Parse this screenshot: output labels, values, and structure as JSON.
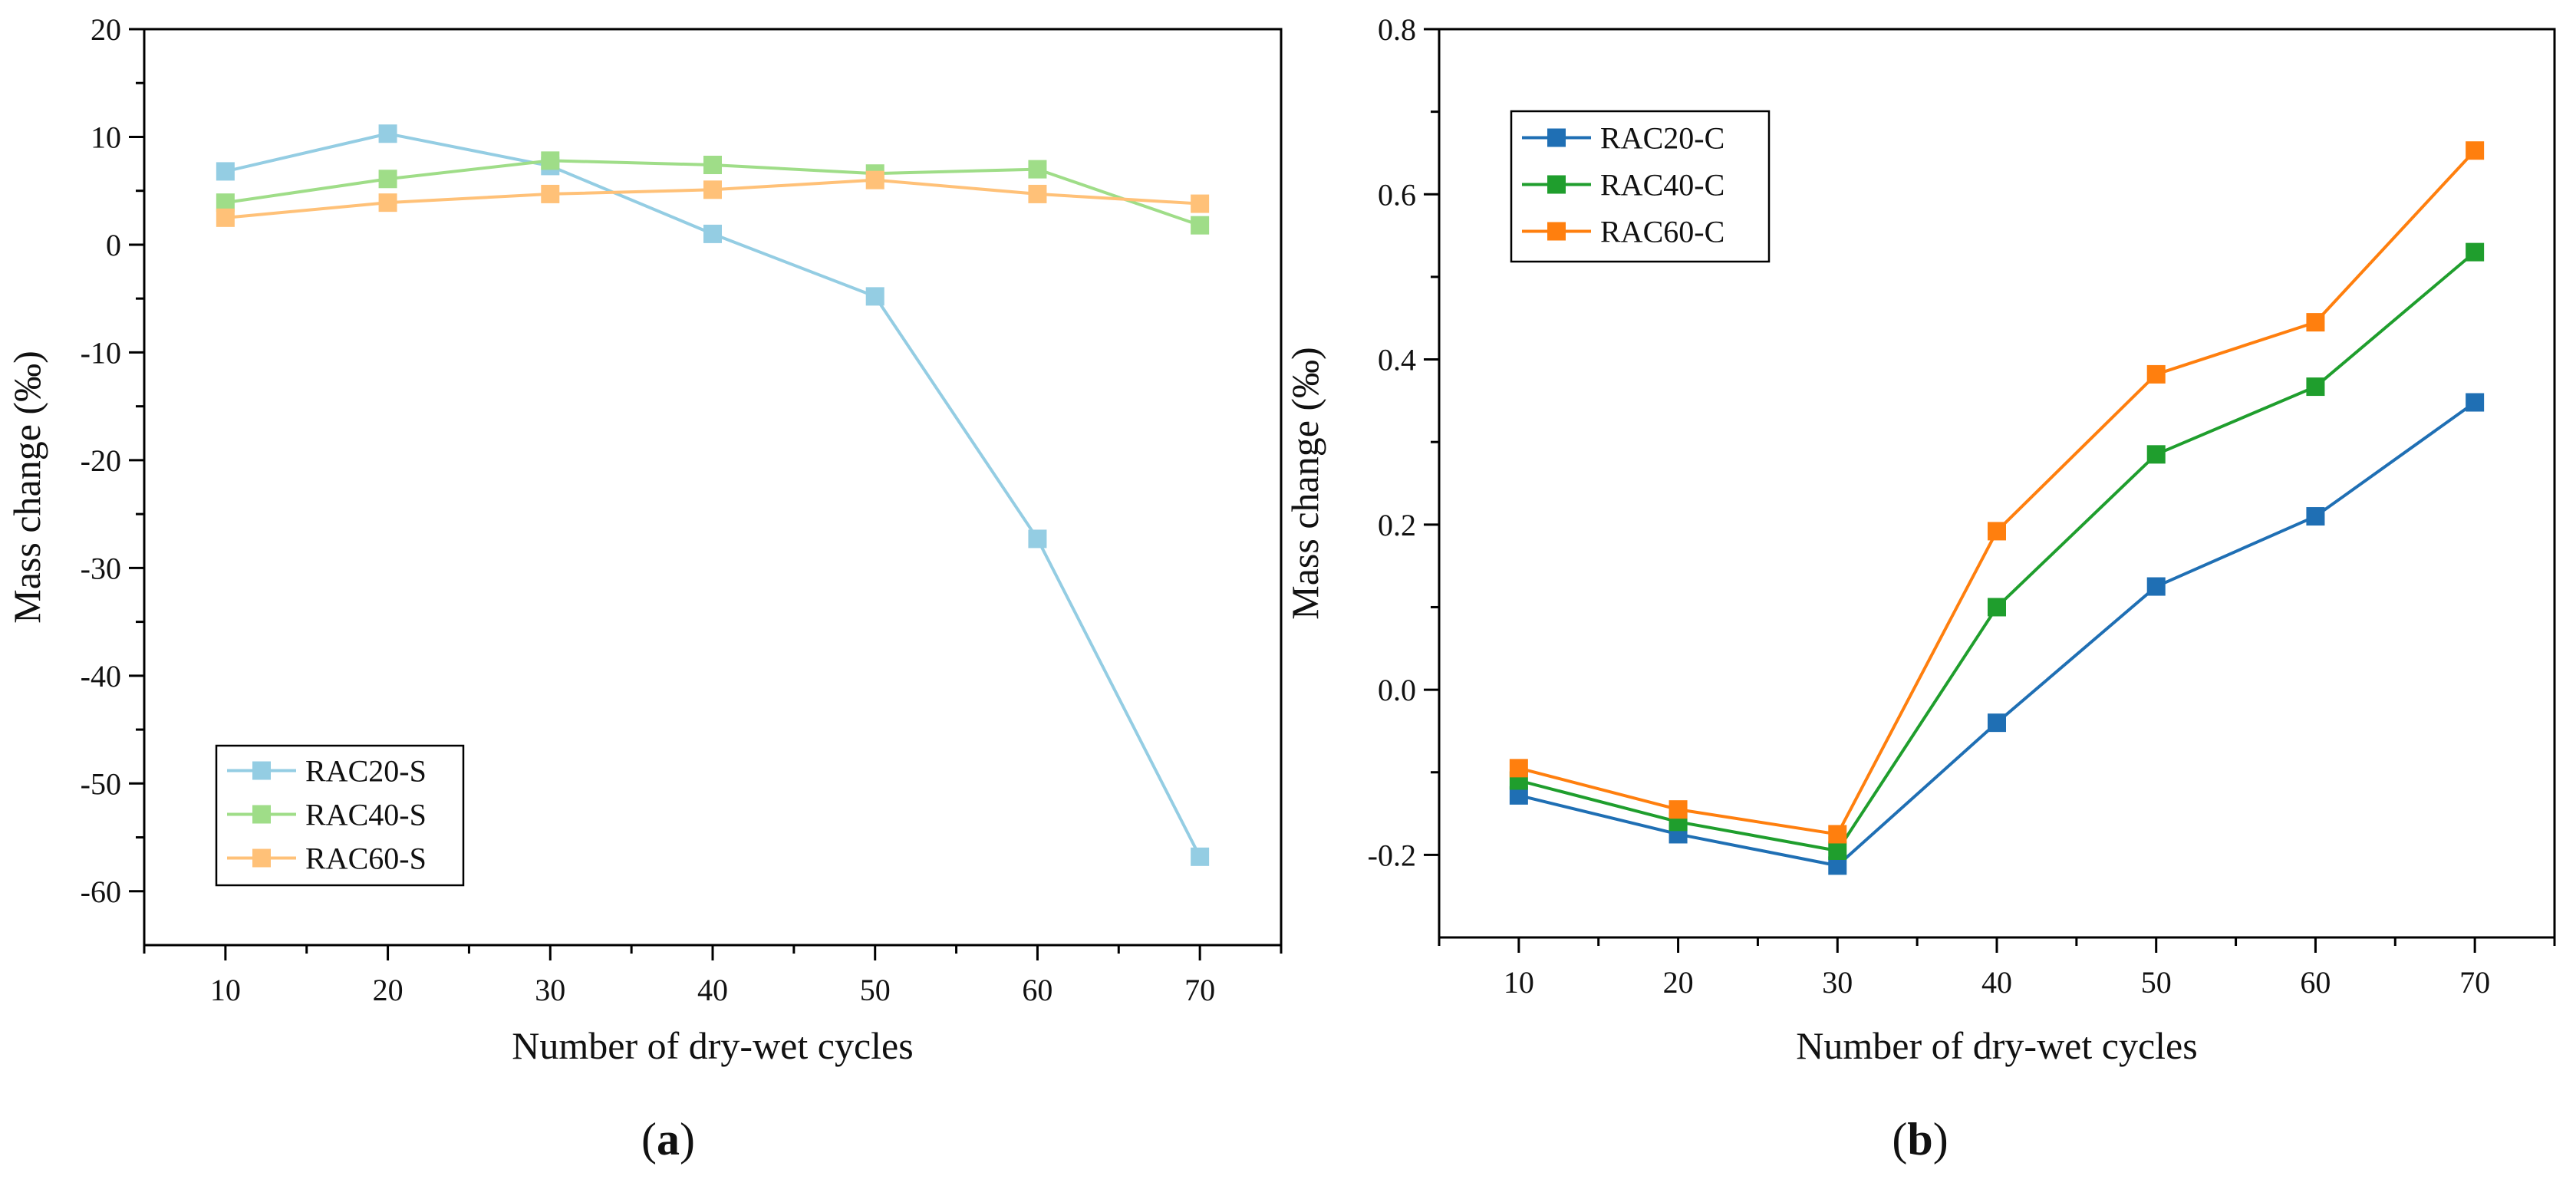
{
  "chart_data": [
    {
      "panel": "a",
      "caption": "a",
      "type": "line",
      "markers": "square",
      "xlabel": "Number of dry-wet cycles",
      "ylabel": "Mass change (‰)",
      "xlim": [
        5,
        75
      ],
      "ylim": [
        -65,
        20
      ],
      "x_ticks": [
        10,
        20,
        30,
        40,
        50,
        60,
        70
      ],
      "y_ticks": [
        20,
        10,
        0,
        -10,
        -20,
        -30,
        -40,
        -50,
        -60
      ],
      "y_tick_labels": [
        "20",
        "10",
        "0",
        "-10",
        "-20",
        "-30",
        "-40",
        "-50",
        "-60"
      ],
      "legend_position": "bottom-left",
      "x": [
        10,
        20,
        30,
        40,
        50,
        60,
        70
      ],
      "series": [
        {
          "name": "RAC20-S",
          "color": "#94cde3",
          "values": [
            6.8,
            10.3,
            7.3,
            1.0,
            -4.8,
            -27.3,
            -56.8
          ]
        },
        {
          "name": "RAC40-S",
          "color": "#9fdd88",
          "values": [
            3.9,
            6.1,
            7.8,
            7.4,
            6.6,
            7.0,
            1.8
          ]
        },
        {
          "name": "RAC60-S",
          "color": "#ffc178",
          "values": [
            2.5,
            3.9,
            4.7,
            5.1,
            6.0,
            4.7,
            3.8
          ]
        }
      ]
    },
    {
      "panel": "b",
      "caption": "b",
      "type": "line",
      "markers": "square",
      "xlabel": "Number of dry-wet cycles",
      "ylabel": "Mass change (‰)",
      "xlim": [
        5,
        75
      ],
      "ylim": [
        -0.3,
        0.8
      ],
      "x_ticks": [
        10,
        20,
        30,
        40,
        50,
        60,
        70
      ],
      "y_ticks": [
        0.8,
        0.6,
        0.4,
        0.2,
        0.0,
        -0.2
      ],
      "y_tick_labels": [
        "0.8",
        "0.6",
        "0.4",
        "0.2",
        "0.0",
        "-0.2"
      ],
      "legend_position": "top-left",
      "x": [
        10,
        20,
        30,
        40,
        50,
        60,
        70
      ],
      "series": [
        {
          "name": "RAC20-C",
          "color": "#1f6fb4",
          "values": [
            -0.128,
            -0.175,
            -0.213,
            -0.04,
            0.125,
            0.21,
            0.348
          ]
        },
        {
          "name": "RAC40-C",
          "color": "#1f9e2d",
          "values": [
            -0.11,
            -0.16,
            -0.195,
            0.1,
            0.285,
            0.367,
            0.53
          ]
        },
        {
          "name": "RAC60-C",
          "color": "#ff7f0e",
          "values": [
            -0.095,
            -0.145,
            -0.175,
            0.192,
            0.382,
            0.445,
            0.653
          ]
        }
      ]
    }
  ]
}
